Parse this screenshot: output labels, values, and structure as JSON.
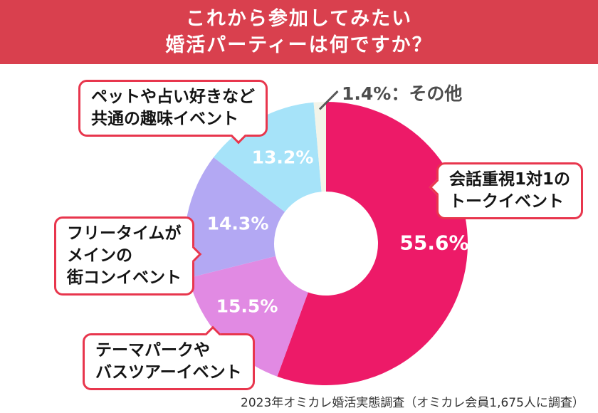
{
  "header": {
    "title_line1": "これから参加してみたい",
    "title_line2": "婚活パーティーは何ですか？",
    "bg_color": "#d9404e",
    "text_color": "#ffffff"
  },
  "chart_data": {
    "type": "pie",
    "donut": true,
    "title": "これから参加してみたい婚活パーティーは何ですか？",
    "start_angle_deg": 0,
    "direction": "clockwise",
    "inner_radius_ratio": 0.37,
    "segments": [
      {
        "label": "会話重視1対1のトークイベント",
        "value": 55.6,
        "pct_label": "55.6%",
        "color": "#ed1a68"
      },
      {
        "label": "テーマパークやバスツアーイベント",
        "value": 15.5,
        "pct_label": "15.5%",
        "color": "#e18ae3"
      },
      {
        "label": "フリータイムがメインの街コンイベント",
        "value": 14.3,
        "pct_label": "14.3%",
        "color": "#b3a8f3"
      },
      {
        "label": "ペットや占い好きなど共通の趣味イベント",
        "value": 13.2,
        "pct_label": "13.2%",
        "color": "#a6e3f9"
      },
      {
        "label": "その他",
        "value": 1.4,
        "pct_label": "1.4%",
        "color": "#f3f4e9"
      }
    ],
    "source_note": "2023年オミカレ婚活実態調査（オミカレ会員1,675人に調査）"
  },
  "callouts": {
    "pets": {
      "line1": "ペットや占い好きなど",
      "line2": "共通の趣味イベント"
    },
    "talk": {
      "line1": "会話重視1対1の",
      "line2": "トークイベント"
    },
    "freetime": {
      "line1": "フリータイムが",
      "line2": "メインの",
      "line3": "街コンイベント"
    },
    "themepark": {
      "line1": "テーマパークや",
      "line2": "バスツアーイベント"
    },
    "other": "1.4%：その他"
  },
  "footer": {
    "caption": "2023年オミカレ婚活実態調査（オミカレ会員1,675人に調査）"
  },
  "colors": {
    "banner_red": "#d9404e",
    "bubble_border_red": "#e8364d",
    "pct_text": "#ffffff",
    "other_label_gray": "#4d4d4d",
    "caption_gray": "#333333"
  }
}
